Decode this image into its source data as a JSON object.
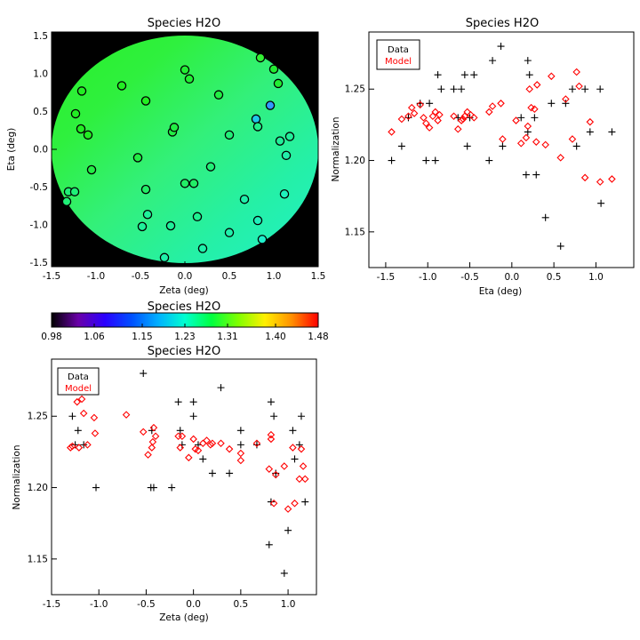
{
  "chart_data": [
    {
      "id": "map",
      "type": "scatter",
      "title": "Species H2O",
      "xlabel": "Zeta (deg)",
      "ylabel": "Eta (deg)",
      "xlim": [
        -1.5,
        1.5
      ],
      "ylim": [
        -1.55,
        1.55
      ],
      "xticks": [
        -1.5,
        -1.0,
        -0.5,
        0.0,
        0.5,
        1.0,
        1.5
      ],
      "xtick_labels": [
        "-1.5",
        "-1.0",
        "-0.5",
        "0.0",
        "0.5",
        "1.0",
        "1.5"
      ],
      "yticks": [
        -1.5,
        -1.0,
        -0.5,
        0.0,
        0.5,
        1.0,
        1.5
      ],
      "ytick_labels": [
        "-1.5",
        "-1.0",
        "-0.5",
        "0.0",
        "0.5",
        "1.0",
        "1.5"
      ],
      "background": "#000000",
      "disk_radius_deg": 1.5,
      "disk_colors": [
        "#28f028",
        "#2ff03e",
        "#33f07a",
        "#25f0a6",
        "#1ff0c8"
      ],
      "points": [
        {
          "zeta": -1.33,
          "eta": -0.69,
          "color": "#1ff077"
        },
        {
          "zeta": -1.31,
          "eta": -0.56,
          "color": "#1ff077"
        },
        {
          "zeta": -1.24,
          "eta": -0.56,
          "color": "#1ff077"
        },
        {
          "zeta": -1.23,
          "eta": 0.47,
          "color": "#22ee22"
        },
        {
          "zeta": -1.16,
          "eta": 0.77,
          "color": "#22ee22"
        },
        {
          "zeta": -1.17,
          "eta": 0.27,
          "color": "#22ee22"
        },
        {
          "zeta": -1.09,
          "eta": 0.19,
          "color": "#22ee22"
        },
        {
          "zeta": -1.05,
          "eta": -0.27,
          "color": "#22ee44"
        },
        {
          "zeta": -0.71,
          "eta": 0.84,
          "color": "#22ee22"
        },
        {
          "zeta": -0.53,
          "eta": -0.11,
          "color": "#22ee44"
        },
        {
          "zeta": -0.44,
          "eta": 0.64,
          "color": "#22ee22"
        },
        {
          "zeta": -0.44,
          "eta": -0.53,
          "color": "#22ee66"
        },
        {
          "zeta": -0.48,
          "eta": -1.02,
          "color": "#1ff09a"
        },
        {
          "zeta": -0.42,
          "eta": -0.86,
          "color": "#1ff09a"
        },
        {
          "zeta": -0.23,
          "eta": -1.43,
          "color": "#1ff0aa"
        },
        {
          "zeta": -0.14,
          "eta": 0.23,
          "color": "#22ee44"
        },
        {
          "zeta": -0.12,
          "eta": 0.29,
          "color": "#22ee44"
        },
        {
          "zeta": -0.16,
          "eta": -1.01,
          "color": "#1ff09a"
        },
        {
          "zeta": 0.0,
          "eta": 1.05,
          "color": "#22ee33"
        },
        {
          "zeta": 0.05,
          "eta": 0.93,
          "color": "#22ee33"
        },
        {
          "zeta": 0.0,
          "eta": -0.45,
          "color": "#22ee66"
        },
        {
          "zeta": 0.1,
          "eta": -0.45,
          "color": "#22ee66"
        },
        {
          "zeta": 0.14,
          "eta": -0.89,
          "color": "#1ff090"
        },
        {
          "zeta": 0.2,
          "eta": -1.31,
          "color": "#1ff0aa"
        },
        {
          "zeta": 0.29,
          "eta": -0.23,
          "color": "#22ee77"
        },
        {
          "zeta": 0.38,
          "eta": 0.72,
          "color": "#22ee44"
        },
        {
          "zeta": 0.5,
          "eta": 0.19,
          "color": "#22ee77"
        },
        {
          "zeta": 0.5,
          "eta": -1.1,
          "color": "#1ff0aa"
        },
        {
          "zeta": 0.67,
          "eta": -0.66,
          "color": "#1ff0aa"
        },
        {
          "zeta": 0.8,
          "eta": 0.4,
          "color": "#1fc8e8"
        },
        {
          "zeta": 0.82,
          "eta": 0.3,
          "color": "#22ee88"
        },
        {
          "zeta": 0.82,
          "eta": -0.94,
          "color": "#1ff0bb"
        },
        {
          "zeta": 0.85,
          "eta": 1.21,
          "color": "#33f033"
        },
        {
          "zeta": 0.87,
          "eta": -1.19,
          "color": "#1ff0cc"
        },
        {
          "zeta": 0.96,
          "eta": 0.58,
          "color": "#3399ff"
        },
        {
          "zeta": 1.0,
          "eta": 1.06,
          "color": "#22ee33"
        },
        {
          "zeta": 1.05,
          "eta": 0.87,
          "color": "#22ee33"
        },
        {
          "zeta": 1.07,
          "eta": 0.11,
          "color": "#22ee99"
        },
        {
          "zeta": 1.18,
          "eta": 0.17,
          "color": "#22ee99"
        },
        {
          "zeta": 1.14,
          "eta": -0.08,
          "color": "#22eeaa"
        },
        {
          "zeta": 1.12,
          "eta": -0.59,
          "color": "#1ff0bb"
        }
      ]
    },
    {
      "id": "eta-plot",
      "type": "scatter",
      "title": "Species H2O",
      "xlabel": "Eta (deg)",
      "ylabel": "Normalization",
      "xlim": [
        -1.7,
        1.45
      ],
      "ylim": [
        1.125,
        1.29
      ],
      "xticks": [
        -1.5,
        -1.0,
        -0.5,
        0.0,
        0.5,
        1.0
      ],
      "xtick_labels": [
        "-1.5",
        "-1.0",
        "-0.5",
        "0.0",
        "0.5",
        "1.0"
      ],
      "yticks": [
        1.15,
        1.2,
        1.25
      ],
      "ytick_labels": [
        "1.15",
        "1.20",
        "1.25"
      ],
      "legend": {
        "labels": [
          "Data",
          "Model"
        ],
        "colors": [
          "#000000",
          "#ff0000"
        ],
        "placement": "top-left"
      },
      "series": [
        {
          "name": "Data",
          "marker": "plus",
          "color": "#000000",
          "x": [
            -1.43,
            -1.31,
            -1.23,
            -1.09,
            -1.02,
            -0.98,
            -0.91,
            -0.88,
            -0.84,
            -0.69,
            -0.64,
            -0.6,
            -0.56,
            -0.53,
            -0.5,
            -0.45,
            -0.27,
            -0.23,
            -0.13,
            -0.11,
            0.11,
            0.17,
            0.19,
            0.19,
            0.21,
            0.27,
            0.29,
            0.4,
            0.47,
            0.58,
            0.64,
            0.72,
            0.77,
            0.87,
            0.93,
            1.05,
            1.06,
            1.19
          ],
          "y": [
            1.2,
            1.21,
            1.23,
            1.24,
            1.2,
            1.24,
            1.2,
            1.26,
            1.25,
            1.25,
            1.23,
            1.25,
            1.26,
            1.21,
            1.23,
            1.26,
            1.2,
            1.27,
            1.28,
            1.21,
            1.23,
            1.19,
            1.22,
            1.27,
            1.26,
            1.23,
            1.19,
            1.16,
            1.24,
            1.14,
            1.24,
            1.25,
            1.21,
            1.25,
            1.22,
            1.25,
            1.17,
            1.22
          ]
        },
        {
          "name": "Model",
          "marker": "diamond",
          "color": "#ff0000",
          "x": [
            -1.43,
            -1.31,
            -1.23,
            -1.19,
            -1.16,
            -1.09,
            -1.05,
            -1.02,
            -0.98,
            -0.94,
            -0.91,
            -0.88,
            -0.86,
            -0.69,
            -0.64,
            -0.6,
            -0.58,
            -0.56,
            -0.53,
            -0.49,
            -0.45,
            -0.27,
            -0.23,
            -0.13,
            -0.11,
            0.05,
            0.11,
            0.17,
            0.19,
            0.21,
            0.23,
            0.27,
            0.29,
            0.3,
            0.4,
            0.47,
            0.58,
            0.64,
            0.72,
            0.77,
            0.8,
            0.87,
            0.93,
            1.05,
            1.19
          ],
          "y": [
            1.22,
            1.229,
            1.231,
            1.237,
            1.233,
            1.239,
            1.23,
            1.226,
            1.223,
            1.231,
            1.234,
            1.228,
            1.232,
            1.231,
            1.222,
            1.228,
            1.229,
            1.231,
            1.234,
            1.232,
            1.23,
            1.234,
            1.238,
            1.24,
            1.215,
            1.228,
            1.212,
            1.216,
            1.224,
            1.25,
            1.237,
            1.236,
            1.213,
            1.253,
            1.211,
            1.259,
            1.202,
            1.243,
            1.215,
            1.262,
            1.252,
            1.188,
            1.227,
            1.185,
            1.187
          ]
        }
      ]
    },
    {
      "id": "colorbar",
      "type": "heatmap",
      "title": "Species H2O",
      "range": [
        0.98,
        1.48
      ],
      "tick_values": [
        0.98,
        1.06,
        1.15,
        1.23,
        1.31,
        1.4,
        1.48
      ],
      "tick_labels": [
        "0.98",
        "1.06",
        "1.15",
        "1.23",
        "1.31",
        "1.40",
        "1.48"
      ],
      "colors": [
        "#000000",
        "#6a00a8",
        "#2a00ff",
        "#0050ff",
        "#00b0ff",
        "#00ffd0",
        "#00ff40",
        "#80ff00",
        "#fff000",
        "#ff9000",
        "#ff0000"
      ]
    },
    {
      "id": "zeta-plot",
      "type": "scatter",
      "title": "Species H2O",
      "xlabel": "Zeta (deg)",
      "ylabel": "Normalization",
      "xlim": [
        -1.5,
        1.3
      ],
      "ylim": [
        1.125,
        1.29
      ],
      "xticks": [
        -1.5,
        -1.0,
        -0.5,
        0.0,
        0.5,
        1.0
      ],
      "xtick_labels": [
        "-1.5",
        "-1.0",
        "-0.5",
        "0.0",
        "0.5",
        "1.0"
      ],
      "yticks": [
        1.15,
        1.2,
        1.25
      ],
      "ytick_labels": [
        "1.15",
        "1.20",
        "1.25"
      ],
      "legend": {
        "labels": [
          "Data",
          "Model"
        ],
        "colors": [
          "#000000",
          "#ff0000"
        ],
        "placement": "top-left"
      },
      "series": [
        {
          "name": "Data",
          "marker": "plus",
          "color": "#000000",
          "x": [
            -1.28,
            -1.25,
            -1.22,
            -1.16,
            -1.05,
            -1.03,
            -0.53,
            -0.45,
            -0.44,
            -0.42,
            -0.23,
            -0.16,
            -0.14,
            -0.12,
            0.0,
            0.0,
            0.05,
            0.1,
            0.2,
            0.29,
            0.38,
            0.5,
            0.5,
            0.67,
            0.8,
            0.82,
            0.82,
            0.85,
            0.87,
            0.96,
            1.0,
            1.05,
            1.07,
            1.12,
            1.14,
            1.18
          ],
          "y": [
            1.25,
            1.23,
            1.24,
            1.23,
            1.27,
            1.2,
            1.28,
            1.2,
            1.24,
            1.2,
            1.2,
            1.26,
            1.24,
            1.23,
            1.25,
            1.26,
            1.23,
            1.22,
            1.21,
            1.27,
            1.21,
            1.23,
            1.24,
            1.23,
            1.16,
            1.26,
            1.19,
            1.25,
            1.21,
            1.14,
            1.17,
            1.24,
            1.22,
            1.23,
            1.25,
            1.19
          ]
        },
        {
          "name": "Model",
          "marker": "diamond",
          "color": "#ff0000",
          "x": [
            -1.3,
            -1.28,
            -1.23,
            -1.21,
            -1.18,
            -1.16,
            -1.12,
            -1.05,
            -1.04,
            -0.71,
            -0.53,
            -0.48,
            -0.44,
            -0.43,
            -0.42,
            -0.4,
            -0.16,
            -0.14,
            -0.12,
            -0.05,
            0.0,
            0.02,
            0.05,
            0.1,
            0.14,
            0.18,
            0.2,
            0.29,
            0.38,
            0.5,
            0.5,
            0.67,
            0.8,
            0.82,
            0.82,
            0.85,
            0.87,
            0.96,
            1.0,
            1.05,
            1.07,
            1.12,
            1.14,
            1.16,
            1.18
          ],
          "y": [
            1.228,
            1.229,
            1.26,
            1.228,
            1.262,
            1.252,
            1.23,
            1.249,
            1.238,
            1.251,
            1.239,
            1.223,
            1.228,
            1.232,
            1.242,
            1.236,
            1.236,
            1.228,
            1.236,
            1.221,
            1.234,
            1.227,
            1.226,
            1.231,
            1.233,
            1.23,
            1.231,
            1.231,
            1.227,
            1.224,
            1.219,
            1.231,
            1.213,
            1.234,
            1.237,
            1.189,
            1.209,
            1.215,
            1.185,
            1.228,
            1.189,
            1.206,
            1.227,
            1.215,
            1.206
          ]
        }
      ]
    }
  ]
}
